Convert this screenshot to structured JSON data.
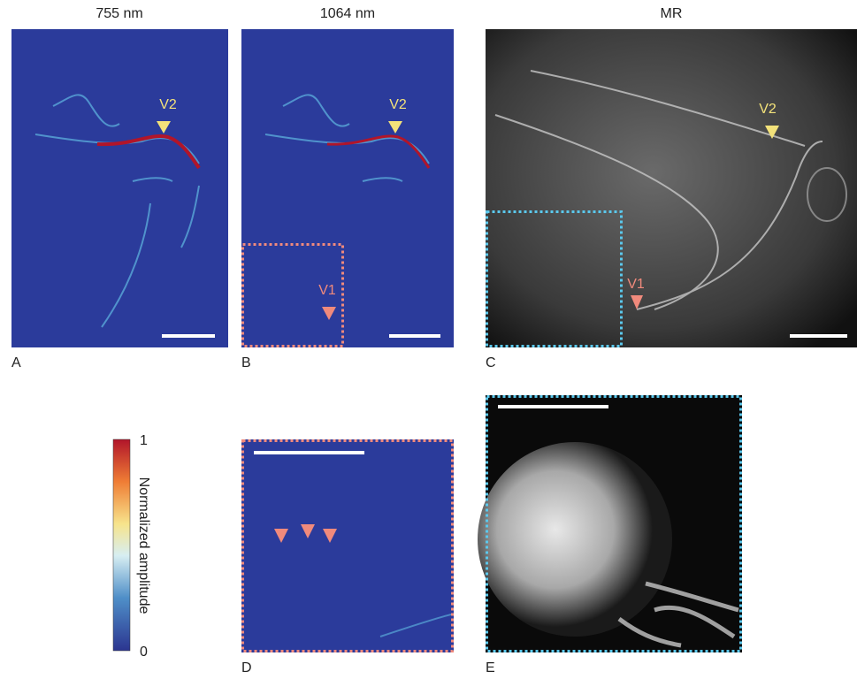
{
  "panels": [
    {
      "title": "755 nm",
      "label": "A",
      "annotations": [
        "V2"
      ]
    },
    {
      "title": "1064 nm",
      "label": "B",
      "annotations": [
        "V2",
        "V1"
      ]
    },
    {
      "title": "MR",
      "label": "C",
      "annotations": [
        "V2",
        "V1"
      ]
    },
    {
      "label": "D"
    },
    {
      "label": "E"
    }
  ],
  "colorbar": {
    "label": "Normalized amplitude",
    "max": 1,
    "min": 0
  }
}
